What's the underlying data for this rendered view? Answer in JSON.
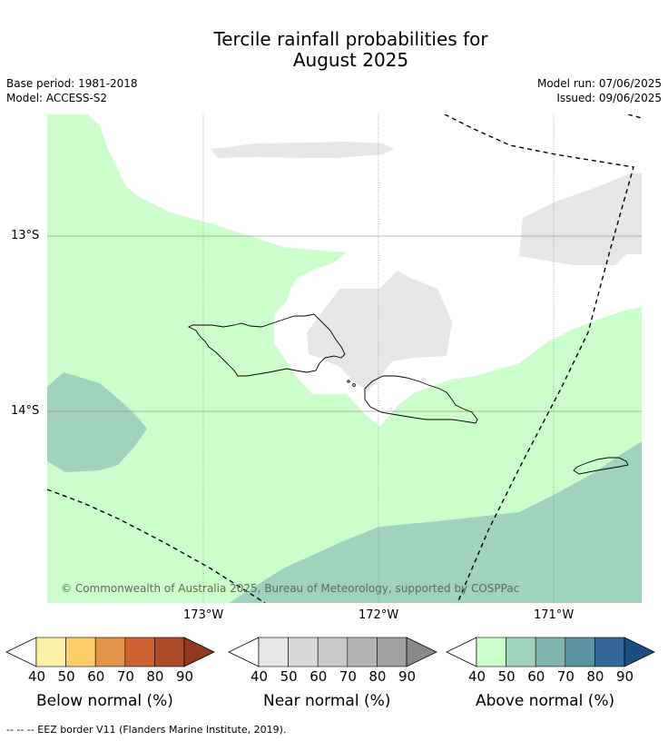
{
  "title_line1": "Tercile rainfall probabilities for",
  "title_line2": "August 2025",
  "base_period": "Base period: 1981-2018",
  "model": "Model: ACCESS-S2",
  "model_run": "Model run: 07/06/2025",
  "issued": "Issued: 09/06/2025",
  "latitude_labels": [
    "13°S",
    "14°S"
  ],
  "longitude_labels": [
    "173°W",
    "172°W",
    "171°W"
  ],
  "copyright": "© Commonwealth of Australia 2025, Bureau of Meteorology, supported by COSPPac",
  "legend": {
    "below": {
      "label": "Below normal (%)",
      "ticks": [
        "40",
        "50",
        "60",
        "70",
        "80",
        "90"
      ],
      "colors": [
        "#fef0a6",
        "#fdcd68",
        "#e2944b",
        "#cd6132",
        "#ad4b28",
        "#923722"
      ]
    },
    "near": {
      "label": "Near normal (%)",
      "ticks": [
        "40",
        "50",
        "60",
        "70",
        "80",
        "90"
      ],
      "colors": [
        "#e6e6e6",
        "#d8d8d8",
        "#c9c9c9",
        "#b3b3b3",
        "#a1a1a1",
        "#8a8a8a"
      ]
    },
    "above": {
      "label": "Above normal (%)",
      "ticks": [
        "40",
        "50",
        "60",
        "70",
        "80",
        "90"
      ],
      "colors": [
        "#ccfecc",
        "#a0d2bc",
        "#80b4b0",
        "#5b94a0",
        "#356899",
        "#1d4e82"
      ]
    }
  },
  "footnote": "--  --  -- EEZ border V11 (Flanders Marine Institute, 2019)."
}
